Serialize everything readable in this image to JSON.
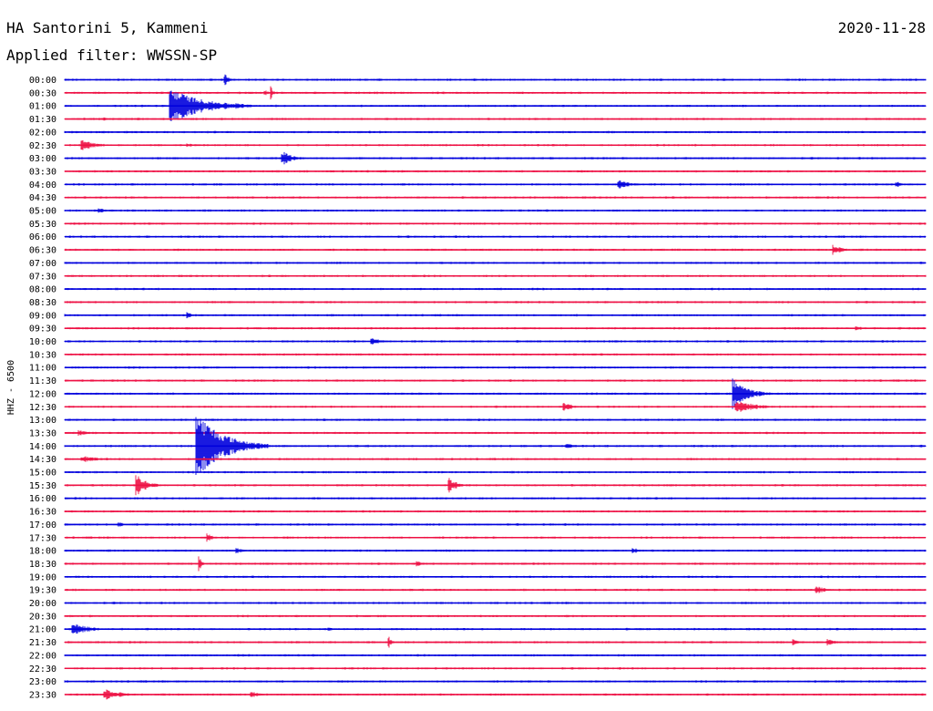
{
  "header": {
    "station": "HA Santorini 5, Kammeni",
    "date": "2020-11-28",
    "filter": "Applied filter: WWSSN-SP"
  },
  "chart_data": {
    "type": "helicorder",
    "title": "HA Santorini 5, Kammeni",
    "date": "2020-11-28",
    "filter": "WWSSN-SP",
    "ylabel": "HHZ - 6500",
    "colors": [
      "#0000dd",
      "#ee1144"
    ],
    "time_labels": [
      "00:00",
      "00:30",
      "01:00",
      "01:30",
      "02:00",
      "02:30",
      "03:00",
      "03:30",
      "04:00",
      "04:30",
      "05:00",
      "05:30",
      "06:00",
      "06:30",
      "07:00",
      "07:30",
      "08:00",
      "08:30",
      "09:00",
      "09:30",
      "10:00",
      "10:30",
      "11:00",
      "11:30",
      "12:00",
      "12:30",
      "13:00",
      "13:30",
      "14:00",
      "14:30",
      "15:00",
      "15:30",
      "16:00",
      "16:30",
      "17:00",
      "17:30",
      "18:00",
      "18:30",
      "19:00",
      "19:30",
      "20:00",
      "20:30",
      "21:00",
      "21:30",
      "22:00",
      "22:30",
      "23:00",
      "23:30"
    ],
    "trace_minutes": 30,
    "events": [
      {
        "row": 0,
        "minute": 5.6,
        "amplitude": 6,
        "duration_min": 0.5
      },
      {
        "row": 1,
        "minute": 7.0,
        "amplitude": 3,
        "duration_min": 0.3
      },
      {
        "row": 1,
        "minute": 7.2,
        "amplitude": 6,
        "duration_min": 0.2
      },
      {
        "row": 2,
        "minute": 3.7,
        "amplitude": 20,
        "duration_min": 3.0
      },
      {
        "row": 2,
        "minute": 6.0,
        "amplitude": 4,
        "duration_min": 1.0
      },
      {
        "row": 3,
        "minute": 1.3,
        "amplitude": 2,
        "duration_min": 1.0
      },
      {
        "row": 5,
        "minute": 0.6,
        "amplitude": 6,
        "duration_min": 1.5
      },
      {
        "row": 5,
        "minute": 4.3,
        "amplitude": 2,
        "duration_min": 1.2
      },
      {
        "row": 6,
        "minute": 7.6,
        "amplitude": 8,
        "duration_min": 1.0
      },
      {
        "row": 8,
        "minute": 19.3,
        "amplitude": 5,
        "duration_min": 1.2
      },
      {
        "row": 8,
        "minute": 29.0,
        "amplitude": 3,
        "duration_min": 0.8
      },
      {
        "row": 10,
        "minute": 1.2,
        "amplitude": 3,
        "duration_min": 1.0
      },
      {
        "row": 13,
        "minute": 26.8,
        "amplitude": 5,
        "duration_min": 1.0
      },
      {
        "row": 18,
        "minute": 4.3,
        "amplitude": 4,
        "duration_min": 0.3
      },
      {
        "row": 19,
        "minute": 27.6,
        "amplitude": 3,
        "duration_min": 0.6
      },
      {
        "row": 20,
        "minute": 10.7,
        "amplitude": 4,
        "duration_min": 1.2
      },
      {
        "row": 24,
        "minute": 23.3,
        "amplitude": 16,
        "duration_min": 1.5
      },
      {
        "row": 25,
        "minute": 17.4,
        "amplitude": 5,
        "duration_min": 1.0
      },
      {
        "row": 25,
        "minute": 23.4,
        "amplitude": 7,
        "duration_min": 2.0
      },
      {
        "row": 27,
        "minute": 0.5,
        "amplitude": 3,
        "duration_min": 1.2
      },
      {
        "row": 28,
        "minute": 4.6,
        "amplitude": 38,
        "duration_min": 2.5
      },
      {
        "row": 28,
        "minute": 17.5,
        "amplitude": 3,
        "duration_min": 0.8
      },
      {
        "row": 29,
        "minute": 0.6,
        "amplitude": 4,
        "duration_min": 1.5
      },
      {
        "row": 31,
        "minute": 2.5,
        "amplitude": 12,
        "duration_min": 1.0
      },
      {
        "row": 31,
        "minute": 13.4,
        "amplitude": 8,
        "duration_min": 0.8
      },
      {
        "row": 34,
        "minute": 1.9,
        "amplitude": 3,
        "duration_min": 0.5
      },
      {
        "row": 35,
        "minute": 5.0,
        "amplitude": 4,
        "duration_min": 0.6
      },
      {
        "row": 36,
        "minute": 6.0,
        "amplitude": 3,
        "duration_min": 0.6
      },
      {
        "row": 36,
        "minute": 19.8,
        "amplitude": 4,
        "duration_min": 0.6
      },
      {
        "row": 37,
        "minute": 4.7,
        "amplitude": 8,
        "duration_min": 0.2
      },
      {
        "row": 37,
        "minute": 12.3,
        "amplitude": 3,
        "duration_min": 0.4
      },
      {
        "row": 39,
        "minute": 26.2,
        "amplitude": 5,
        "duration_min": 0.8
      },
      {
        "row": 42,
        "minute": 0.3,
        "amplitude": 6,
        "duration_min": 1.8
      },
      {
        "row": 42,
        "minute": 9.2,
        "amplitude": 3,
        "duration_min": 0.5
      },
      {
        "row": 43,
        "minute": 11.3,
        "amplitude": 7,
        "duration_min": 0.2
      },
      {
        "row": 43,
        "minute": 26.6,
        "amplitude": 4,
        "duration_min": 0.8
      },
      {
        "row": 43,
        "minute": 25.4,
        "amplitude": 3,
        "duration_min": 0.6
      },
      {
        "row": 47,
        "minute": 1.4,
        "amplitude": 7,
        "duration_min": 1.5
      },
      {
        "row": 47,
        "minute": 6.5,
        "amplitude": 4,
        "duration_min": 0.8
      }
    ],
    "grid": false
  }
}
